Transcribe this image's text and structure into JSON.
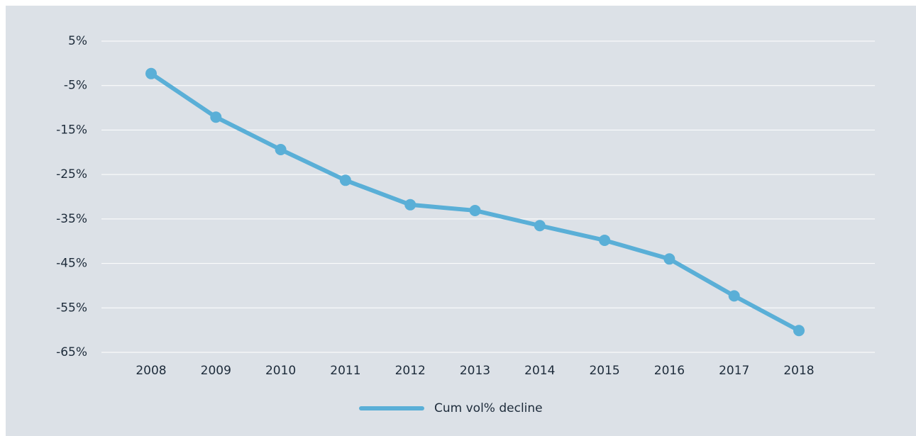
{
  "chart_data": {
    "type": "line",
    "categories": [
      "2008",
      "2009",
      "2010",
      "2011",
      "2012",
      "2013",
      "2014",
      "2015",
      "2016",
      "2017",
      "2018"
    ],
    "series": [
      {
        "name": "Cum vol% decline",
        "color": "#5aafd7",
        "values": [
          -2.3,
          -12.1,
          -19.4,
          -26.3,
          -31.8,
          -33.1,
          -36.5,
          -39.8,
          -44.0,
          -52.3,
          -60.1
        ]
      }
    ],
    "ylim": [
      -65,
      5
    ],
    "yticks": [
      {
        "value": 5,
        "label": "5%"
      },
      {
        "value": -5,
        "label": "-5%"
      },
      {
        "value": -15,
        "label": "-15%"
      },
      {
        "value": -25,
        "label": "-25%"
      },
      {
        "value": -35,
        "label": "-35%"
      },
      {
        "value": -45,
        "label": "-45%"
      },
      {
        "value": -55,
        "label": "-55%"
      },
      {
        "value": -65,
        "label": "-65%"
      }
    ],
    "grid": true,
    "legend": "bottom"
  }
}
